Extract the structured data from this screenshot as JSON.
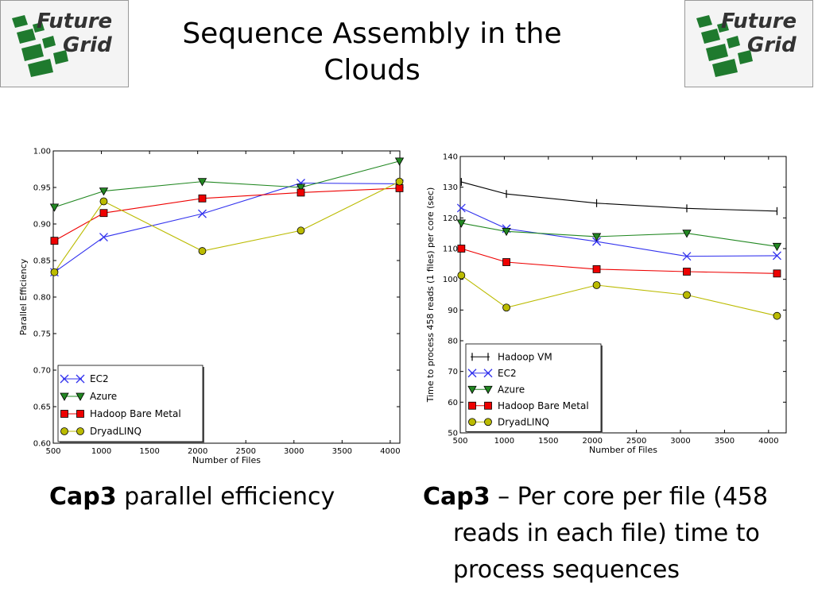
{
  "slide": {
    "title_lines": [
      "Sequence Assembly in the",
      "Clouds"
    ],
    "logo_text_line1": "Future",
    "logo_text_line2": "Grid"
  },
  "captions": {
    "left_bold": "Cap3",
    "left_rest": " parallel efficiency",
    "right_bold": "Cap3",
    "right_rest_line1": " – Per core per file (458",
    "right_line2": "reads in each file) time to",
    "right_line3": "process sequences"
  },
  "colors": {
    "ec2": "#3333ee",
    "azure": "#228822",
    "hadoop_bare_metal": "#ee0000",
    "dryadlinq": "#bbbb00",
    "hadoop_vm": "#000000"
  },
  "chart_data": [
    {
      "type": "line",
      "xlabel": "Number of Files",
      "ylabel": "Parallel Efficiency",
      "xlim": [
        500,
        4100
      ],
      "ylim": [
        0.6,
        1.0
      ],
      "xticks": [
        "500",
        "1000",
        "1500",
        "2000",
        "2500",
        "3000",
        "3500",
        "4000"
      ],
      "yticks": [
        "0.60",
        "0.65",
        "0.70",
        "0.75",
        "0.80",
        "0.85",
        "0.90",
        "0.95",
        "1.00"
      ],
      "legend": "bottom-left",
      "series": [
        {
          "name": "EC2",
          "marker": "x",
          "x": [
            512,
            1024,
            2048,
            3072,
            4096
          ],
          "values": [
            0.834,
            0.882,
            0.914,
            0.956,
            0.955
          ]
        },
        {
          "name": "Azure",
          "marker": "tri",
          "x": [
            512,
            1024,
            2048,
            3072,
            4096
          ],
          "values": [
            0.923,
            0.945,
            0.958,
            0.95,
            0.986
          ]
        },
        {
          "name": "Hadoop Bare Metal",
          "marker": "square",
          "x": [
            512,
            1024,
            2048,
            3072,
            4096
          ],
          "values": [
            0.877,
            0.915,
            0.935,
            0.943,
            0.949
          ]
        },
        {
          "name": "DryadLINQ",
          "marker": "circle",
          "x": [
            512,
            1024,
            2048,
            3072,
            4096
          ],
          "values": [
            0.834,
            0.931,
            0.863,
            0.891,
            0.958
          ]
        }
      ]
    },
    {
      "type": "line",
      "xlabel": "Number of Files",
      "ylabel": "Time to process 458 reads (1 files) per core (sec)",
      "xlim": [
        500,
        4200
      ],
      "ylim": [
        50,
        140
      ],
      "xticks": [
        "500",
        "1000",
        "1500",
        "2000",
        "2500",
        "3000",
        "3500",
        "4000"
      ],
      "yticks": [
        "50",
        "60",
        "70",
        "80",
        "90",
        "100",
        "110",
        "120",
        "130",
        "140"
      ],
      "legend": "bottom-left",
      "series": [
        {
          "name": "Hadoop VM",
          "marker": "vbar",
          "x": [
            512,
            1024,
            2048,
            3072,
            4096
          ],
          "values": [
            131.7,
            127.8,
            124.8,
            123.1,
            122.2
          ]
        },
        {
          "name": "EC2",
          "marker": "x",
          "x": [
            512,
            1024,
            2048,
            3072,
            4096
          ],
          "values": [
            123.2,
            116.5,
            112.3,
            107.5,
            107.7
          ]
        },
        {
          "name": "Azure",
          "marker": "tri",
          "x": [
            512,
            1024,
            2048,
            3072,
            4096
          ],
          "values": [
            118.3,
            115.6,
            113.9,
            115.0,
            110.7
          ]
        },
        {
          "name": "Hadoop Bare Metal",
          "marker": "square",
          "x": [
            512,
            1024,
            2048,
            3072,
            4096
          ],
          "values": [
            110.0,
            105.6,
            103.3,
            102.5,
            101.9
          ]
        },
        {
          "name": "DryadLINQ",
          "marker": "circle",
          "x": [
            512,
            1024,
            2048,
            3072,
            4096
          ],
          "values": [
            101.3,
            90.8,
            98.1,
            94.9,
            88.1
          ]
        }
      ]
    }
  ]
}
